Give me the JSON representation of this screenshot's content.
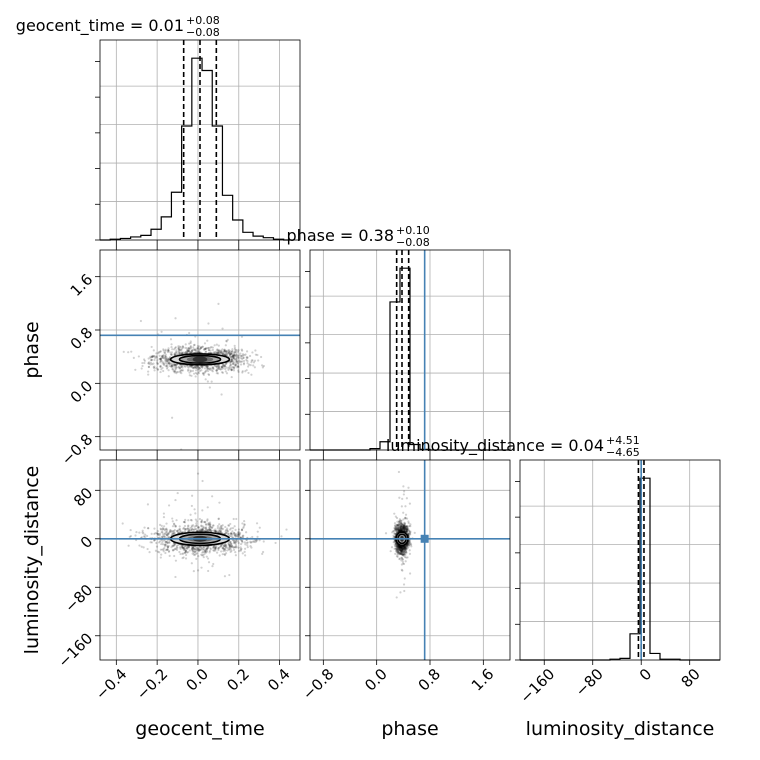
{
  "chart_data": {
    "type": "corner",
    "parameters": [
      "geocent_time",
      "phase",
      "luminosity_distance"
    ],
    "truths": {
      "geocent_time": null,
      "phase": 0.72,
      "luminosity_distance": 0
    },
    "truth_color": "#4682b4",
    "titles": [
      {
        "name": "geocent_time",
        "median": "0.01",
        "plus": "+0.08",
        "minus": "−0.08"
      },
      {
        "name": "phase",
        "median": "0.38",
        "plus": "+0.10",
        "minus": "−0.08"
      },
      {
        "name": "luminosity_distance",
        "median": "0.04",
        "plus": "+4.51",
        "minus": "−4.65"
      }
    ],
    "axes": {
      "geocent_time": {
        "range": [
          -0.48,
          0.5
        ],
        "ticks": [
          -0.4,
          -0.2,
          0.0,
          0.2,
          0.4
        ],
        "tick_labels": [
          "−0.4",
          "−0.2",
          "0.0",
          "0.2",
          "0.4"
        ]
      },
      "phase": {
        "range": [
          -1.0,
          2.0
        ],
        "ticks": [
          -0.8,
          0.0,
          0.8,
          1.6
        ],
        "tick_labels": [
          "−0.8",
          "0.0",
          "0.8",
          "1.6"
        ]
      },
      "luminosity_distance": {
        "range": [
          -200,
          130
        ],
        "ticks": [
          -160,
          -80,
          0,
          80
        ],
        "tick_labels": [
          "−160",
          "−80",
          "0",
          "80"
        ]
      }
    },
    "histograms": {
      "geocent_time": {
        "edges": [
          -0.48,
          -0.43,
          -0.38,
          -0.33,
          -0.28,
          -0.23,
          -0.18,
          -0.13,
          -0.08,
          -0.03,
          0.02,
          0.07,
          0.12,
          0.17,
          0.22,
          0.27,
          0.32,
          0.37,
          0.42,
          0.47
        ],
        "counts": [
          0,
          1,
          2,
          4,
          6,
          14,
          30,
          62,
          148,
          236,
          220,
          148,
          58,
          26,
          10,
          5,
          3,
          1,
          0
        ],
        "quantiles": [
          -0.07,
          0.01,
          0.09
        ]
      },
      "phase": {
        "edges": [
          -1.0,
          -0.85,
          -0.7,
          -0.55,
          -0.4,
          -0.25,
          -0.1,
          0.05,
          0.2,
          0.35,
          0.5,
          0.65,
          0.8,
          0.95,
          1.1,
          1.25,
          1.4,
          1.55,
          1.7,
          1.85,
          2.0
        ],
        "counts": [
          0,
          0,
          0,
          0,
          0,
          0,
          2,
          12,
          215,
          264,
          8,
          1,
          0,
          0,
          0,
          0,
          0,
          0,
          0,
          0
        ],
        "quantiles": [
          0.3,
          0.38,
          0.48
        ]
      },
      "luminosity_distance": {
        "edges": [
          -200,
          -183.5,
          -167,
          -150.5,
          -134,
          -117.5,
          -101,
          -84.5,
          -68,
          -51.5,
          -35,
          -18.5,
          -2,
          14.5,
          31,
          47.5,
          64,
          80.5,
          97,
          113.5,
          130
        ],
        "counts": [
          0,
          0,
          0,
          0,
          0,
          0,
          0,
          0,
          0,
          1,
          2,
          32,
          222,
          8,
          1,
          1,
          0,
          0,
          0,
          0
        ],
        "quantiles": [
          -4.61,
          0.04,
          4.55
        ]
      }
    },
    "samples_2d": {
      "phase_vs_geocent_time": {
        "center": [
          0.01,
          0.36
        ],
        "sigma": [
          0.08,
          0.09
        ]
      },
      "luminosity_distance_vs_geocent_time": {
        "center": [
          0.01,
          0
        ],
        "sigma": [
          0.08,
          12
        ]
      },
      "luminosity_distance_vs_phase": {
        "center": [
          0.38,
          0
        ],
        "sigma": [
          0.05,
          12
        ]
      }
    },
    "xlabels": [
      "geocent_time",
      "phase",
      "luminosity_distance"
    ],
    "ylabels": [
      "phase",
      "luminosity_distance"
    ]
  }
}
